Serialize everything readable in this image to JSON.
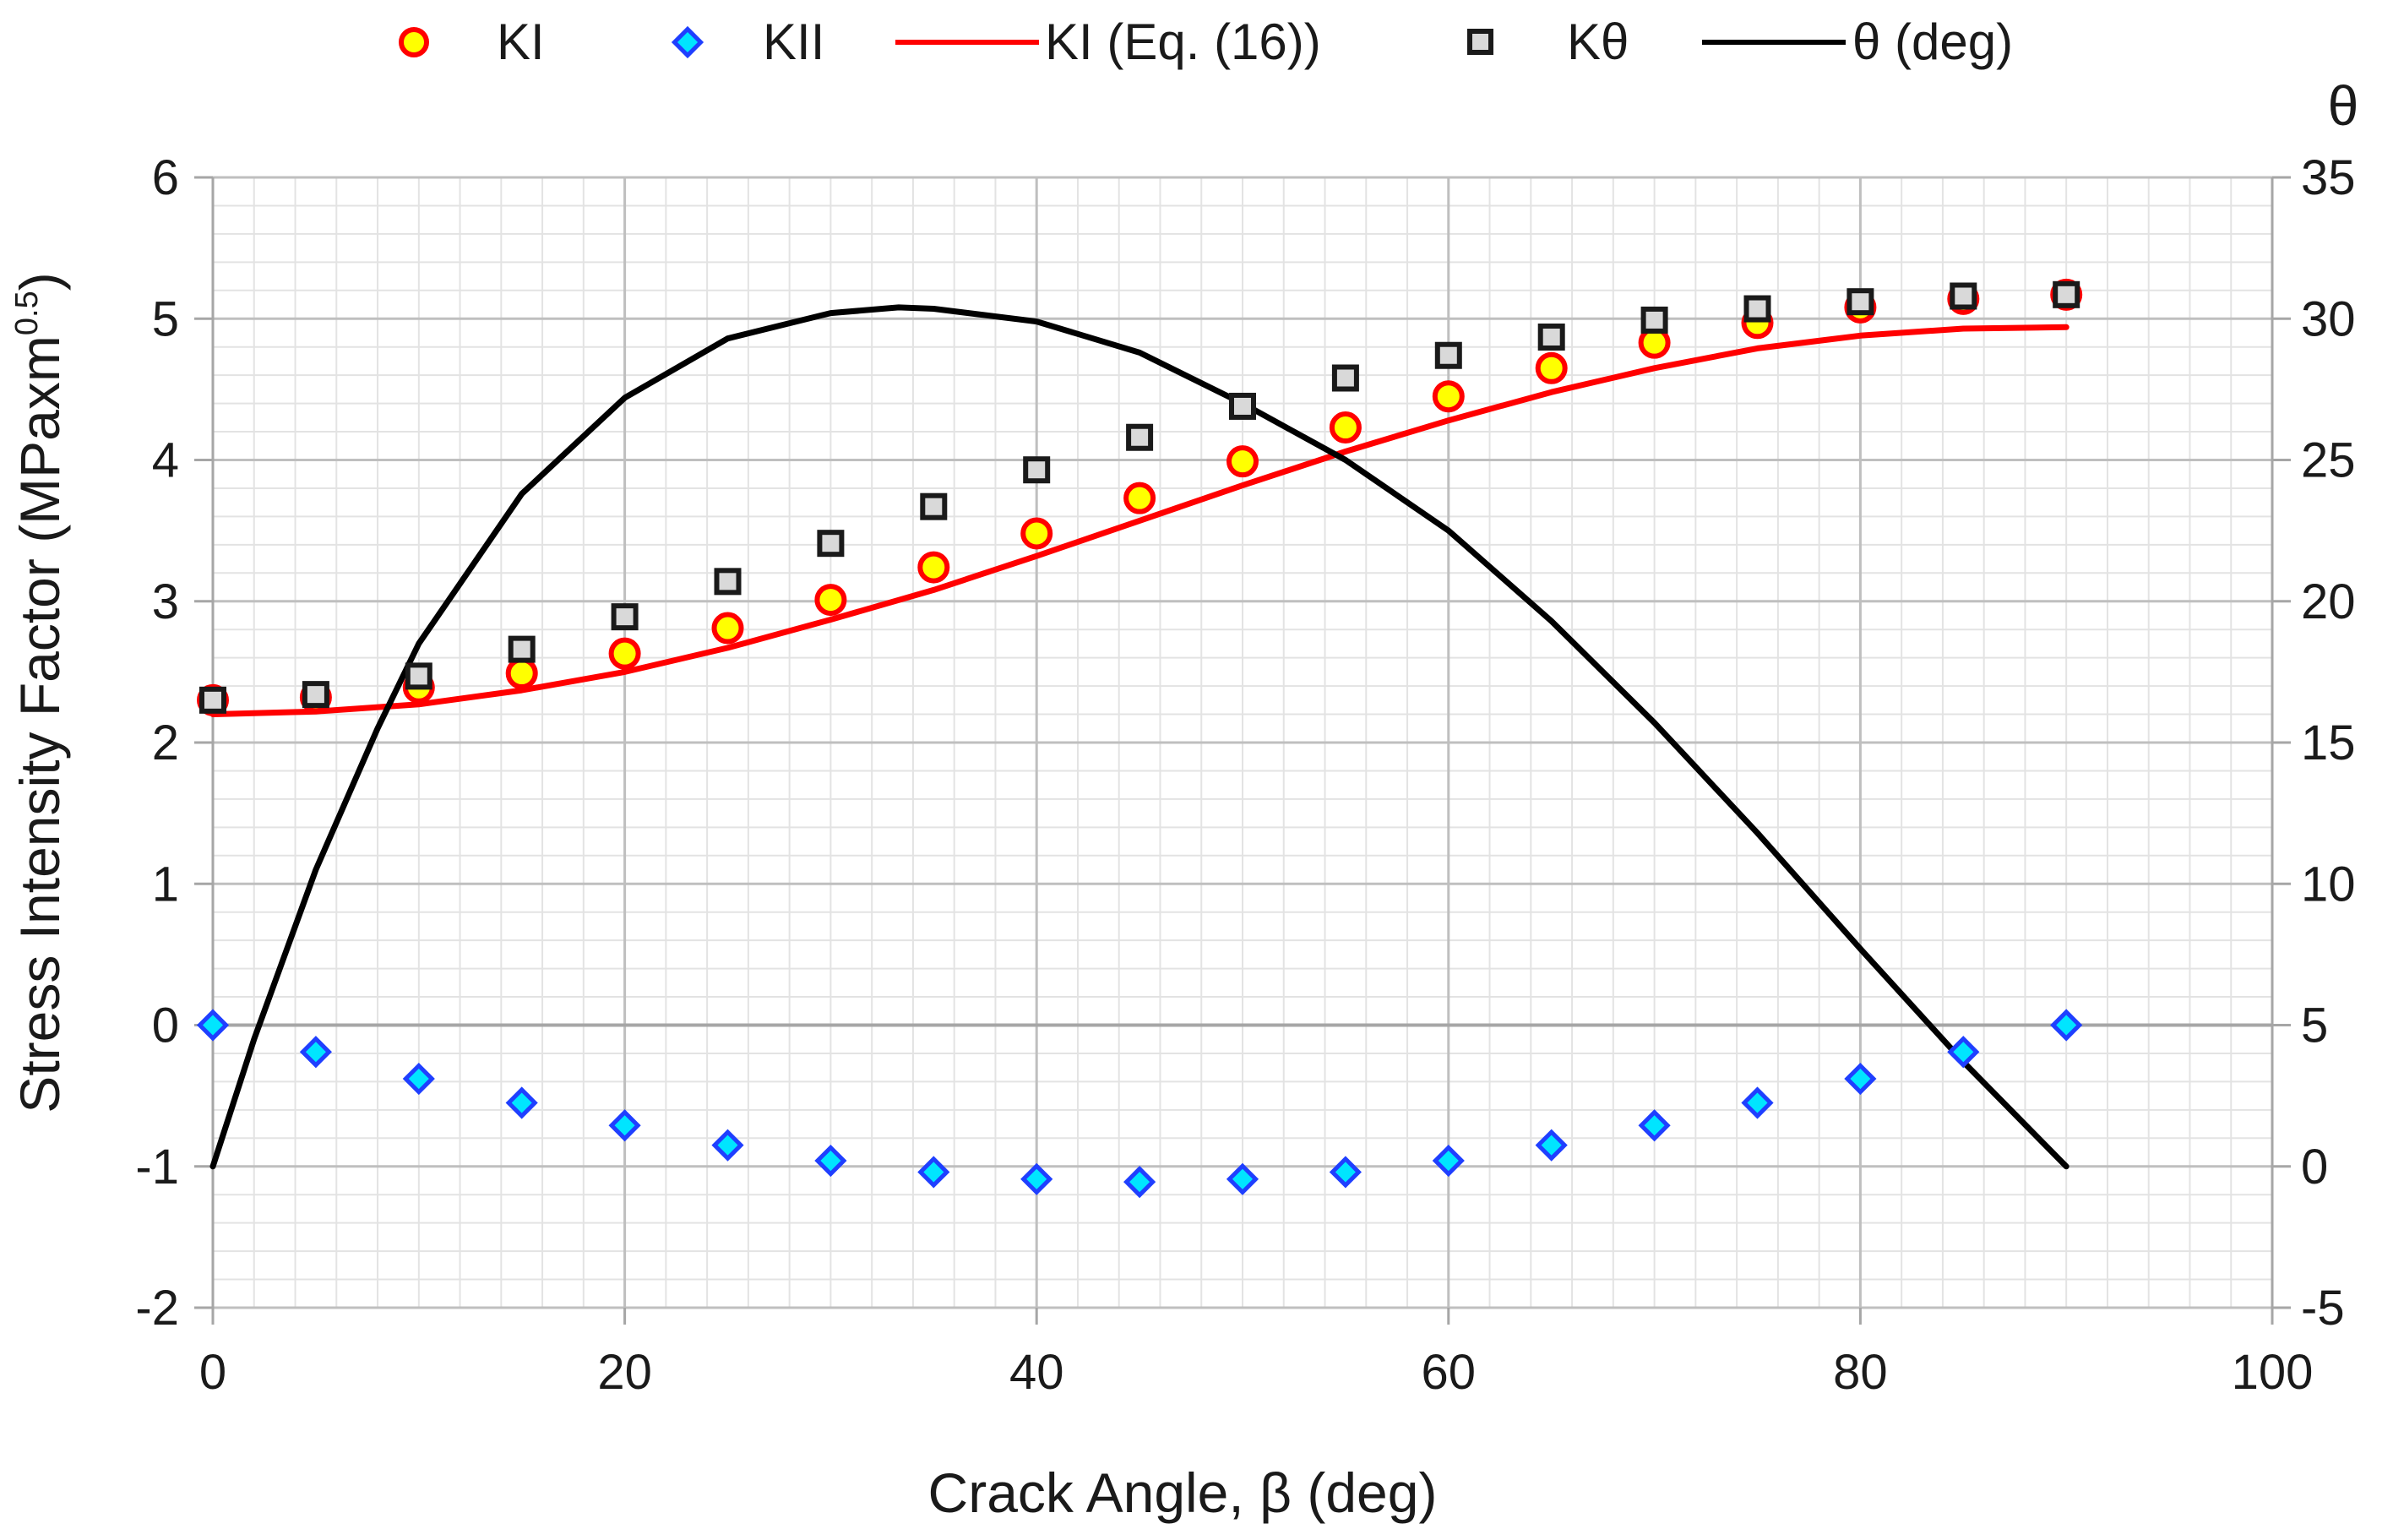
{
  "chart_data": {
    "type": "scatter",
    "title": "",
    "xlabel": "Crack Angle, β (deg)",
    "ylabel_main": "Stress Intensity Factor (MPaxm",
    "ylabel_sup": "0.5",
    "ylabel_close": ")",
    "y2label": "θ",
    "xlim": [
      0,
      100
    ],
    "ylim": [
      -2,
      6
    ],
    "y2lim": [
      -5,
      35
    ],
    "x_ticks": [
      0,
      20,
      40,
      60,
      80,
      100
    ],
    "y_ticks": [
      -2,
      -1,
      0,
      1,
      2,
      3,
      4,
      5,
      6
    ],
    "y2_ticks": [
      -5,
      0,
      5,
      10,
      15,
      20,
      25,
      30,
      35
    ],
    "x_tick_labels": [
      "0",
      "20",
      "40",
      "60",
      "80",
      "100"
    ],
    "y_tick_labels": [
      "-2",
      "-1",
      "0",
      "1",
      "2",
      "3",
      "4",
      "5",
      "6"
    ],
    "y2_tick_labels": [
      "-5",
      "0",
      "5",
      "10",
      "15",
      "20",
      "25",
      "30",
      "35"
    ],
    "grid": true,
    "legend_position": "top",
    "legend": [
      {
        "label": "KI",
        "marker": "circle"
      },
      {
        "label": "KII",
        "marker": "diamond"
      },
      {
        "label": "KI (Eq. (16))",
        "marker": "line"
      },
      {
        "label": "Kθ",
        "marker": "square"
      },
      {
        "label": "θ (deg)",
        "marker": "line"
      }
    ],
    "x": [
      0,
      5,
      10,
      15,
      20,
      25,
      30,
      35,
      40,
      45,
      50,
      55,
      60,
      65,
      70,
      75,
      80,
      85,
      90
    ],
    "series": [
      {
        "name": "KI",
        "axis": "left",
        "kind": "marker",
        "marker": "circle",
        "fill": "#FFFF00",
        "stroke": "#FF0000",
        "values": [
          2.3,
          2.32,
          2.39,
          2.49,
          2.63,
          2.81,
          3.01,
          3.24,
          3.48,
          3.73,
          3.99,
          4.23,
          4.45,
          4.65,
          4.83,
          4.97,
          5.08,
          5.14,
          5.17
        ]
      },
      {
        "name": "KII",
        "axis": "left",
        "kind": "marker",
        "marker": "diamond",
        "fill": "#00E5FF",
        "stroke": "#1F3FFF",
        "values": [
          0.0,
          -0.19,
          -0.38,
          -0.55,
          -0.71,
          -0.85,
          -0.96,
          -1.04,
          -1.09,
          -1.11,
          -1.09,
          -1.04,
          -0.96,
          -0.85,
          -0.71,
          -0.55,
          -0.38,
          -0.19,
          0.0
        ]
      },
      {
        "name": "KI (Eq. (16))",
        "axis": "left",
        "kind": "line",
        "stroke": "#FF0000",
        "values": [
          2.2,
          2.22,
          2.27,
          2.37,
          2.5,
          2.67,
          2.87,
          3.08,
          3.32,
          3.57,
          3.82,
          4.06,
          4.28,
          4.48,
          4.65,
          4.79,
          4.88,
          4.93,
          4.94
        ]
      },
      {
        "name": "Kθ",
        "axis": "left",
        "kind": "marker",
        "marker": "square",
        "fill": "#D9D9D9",
        "stroke": "#1a1a1a",
        "values": [
          2.3,
          2.34,
          2.47,
          2.66,
          2.89,
          3.14,
          3.41,
          3.67,
          3.93,
          4.16,
          4.38,
          4.58,
          4.74,
          4.87,
          4.99,
          5.07,
          5.12,
          5.16,
          5.17
        ]
      },
      {
        "name": "θ (deg)",
        "axis": "right",
        "kind": "line",
        "stroke": "#000000",
        "x": [
          0,
          2,
          5,
          8,
          10,
          15,
          20,
          25,
          30,
          33.3,
          35,
          40,
          45,
          50,
          55,
          60,
          65,
          70,
          75,
          80,
          85,
          90
        ],
        "values": [
          0.0,
          4.5,
          10.5,
          15.5,
          18.5,
          23.8,
          27.2,
          29.3,
          30.2,
          30.4,
          30.35,
          29.9,
          28.8,
          27.0,
          25.0,
          22.5,
          19.3,
          15.7,
          11.8,
          7.7,
          3.7,
          0.0
        ]
      }
    ]
  }
}
